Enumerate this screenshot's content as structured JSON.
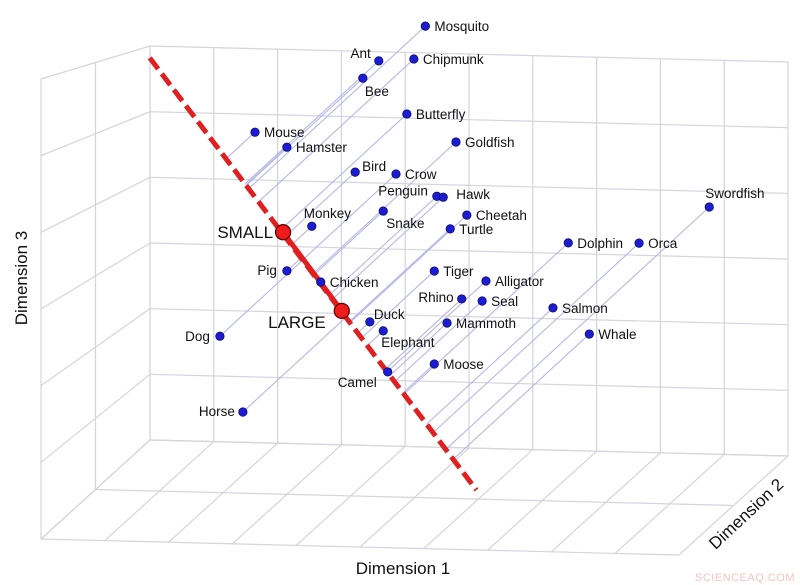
{
  "chart_data": {
    "type": "scatter",
    "projection": "3d",
    "grid": true,
    "xlabel": "Dimension 1",
    "ylabel": "Dimension 2",
    "zlabel": "Dimension 3",
    "colors": {
      "points": "#1c1cd2",
      "size_axis": "#e02020",
      "projection_lines": "#b4b8e6",
      "grid": "#d4d4dc"
    },
    "size_axis": {
      "start": {
        "d1": 0.85,
        "d2": 5,
        "d3": 10.99
      },
      "end": {
        "d1": 5.97,
        "d2": 5,
        "d3": 0.23
      },
      "markers": [
        {
          "label": "SMALL",
          "d1": 2.94,
          "d2": 5,
          "d3": 6.65
        },
        {
          "label": "LARGE",
          "d1": 3.86,
          "d2": 5,
          "d3": 4.69
        }
      ]
    },
    "points": [
      {
        "label": "Mosquito",
        "d1": 5.17,
        "d2": 5,
        "d3": 11.97
      },
      {
        "label": "Ant",
        "d1": 4.44,
        "d2": 5,
        "d3": 11.06
      },
      {
        "label": "Chipmunk",
        "d1": 4.99,
        "d2": 5,
        "d3": 11.13
      },
      {
        "label": "Bee",
        "d1": 4.19,
        "d2": 5,
        "d3": 10.61
      },
      {
        "label": "Butterfly",
        "d1": 4.88,
        "d2": 5,
        "d3": 9.73
      },
      {
        "label": "Mouse",
        "d1": 2.5,
        "d2": 5,
        "d3": 9.17
      },
      {
        "label": "Hamster",
        "d1": 3.0,
        "d2": 5,
        "d3": 8.81
      },
      {
        "label": "Goldfish",
        "d1": 5.65,
        "d2": 5,
        "d3": 9.05
      },
      {
        "label": "Bird",
        "d1": 4.07,
        "d2": 5,
        "d3": 8.22
      },
      {
        "label": "Crow",
        "d1": 4.71,
        "d2": 5,
        "d3": 8.2
      },
      {
        "label": "Penguin",
        "d1": 5.35,
        "d2": 5,
        "d3": 7.66
      },
      {
        "label": "Hawk",
        "d1": 5.45,
        "d2": 5,
        "d3": 7.64
      },
      {
        "label": "Snake",
        "d1": 4.51,
        "d2": 5,
        "d3": 7.25
      },
      {
        "label": "Cheetah",
        "d1": 5.82,
        "d2": 5,
        "d3": 7.2
      },
      {
        "label": "Monkey",
        "d1": 3.39,
        "d2": 5,
        "d3": 6.82
      },
      {
        "label": "Turtle",
        "d1": 5.56,
        "d2": 5,
        "d3": 6.84
      },
      {
        "label": "Swordfish",
        "d1": 9.62,
        "d2": 5,
        "d3": 7.56
      },
      {
        "label": "Dolphin",
        "d1": 7.41,
        "d2": 5,
        "d3": 6.56
      },
      {
        "label": "Orca",
        "d1": 8.52,
        "d2": 5,
        "d3": 6.6
      },
      {
        "label": "Pig",
        "d1": 3.0,
        "d2": 5,
        "d3": 5.67
      },
      {
        "label": "Chicken",
        "d1": 3.53,
        "d2": 5,
        "d3": 5.41
      },
      {
        "label": "Tiger",
        "d1": 5.31,
        "d2": 5,
        "d3": 5.76
      },
      {
        "label": "Alligator",
        "d1": 6.12,
        "d2": 5,
        "d3": 5.54
      },
      {
        "label": "Rhino",
        "d1": 5.74,
        "d2": 5,
        "d3": 5.07
      },
      {
        "label": "Seal",
        "d1": 6.06,
        "d2": 5,
        "d3": 5.03
      },
      {
        "label": "Salmon",
        "d1": 7.17,
        "d2": 5,
        "d3": 4.9
      },
      {
        "label": "Whale",
        "d1": 7.74,
        "d2": 5,
        "d3": 4.26
      },
      {
        "label": "Duck",
        "d1": 4.3,
        "d2": 5,
        "d3": 4.43
      },
      {
        "label": "Elephant",
        "d1": 4.51,
        "d2": 5,
        "d3": 4.21
      },
      {
        "label": "Mammoth",
        "d1": 5.51,
        "d2": 5,
        "d3": 4.45
      },
      {
        "label": "Moose",
        "d1": 5.31,
        "d2": 5,
        "d3": 3.4
      },
      {
        "label": "Camel",
        "d1": 4.58,
        "d2": 5,
        "d3": 3.17
      },
      {
        "label": "Dog",
        "d1": 1.95,
        "d2": 5,
        "d3": 3.97
      },
      {
        "label": "Horse",
        "d1": 2.31,
        "d2": 5,
        "d3": 2.06
      }
    ]
  },
  "watermark": "SCIENCEAQ.COM"
}
